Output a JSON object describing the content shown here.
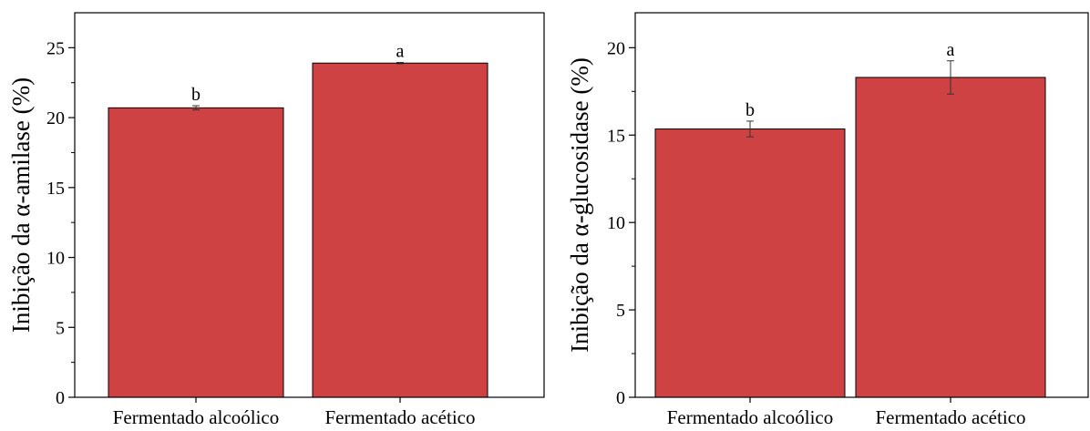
{
  "chart_data": [
    {
      "type": "bar",
      "categories": [
        "Fermentado alcoólico",
        "Fermentado acético"
      ],
      "series": [
        {
          "values": [
            20.7,
            23.9
          ],
          "errors": [
            0.15,
            0.05
          ],
          "letters": [
            "b",
            "a"
          ]
        }
      ],
      "xlabel": "",
      "ylabel": "Inibição da α-amilase  (%)",
      "ylim": [
        0,
        27.5
      ],
      "yticks": [
        0,
        5,
        10,
        15,
        20,
        25
      ],
      "ytick_labels": [
        "0",
        "5",
        "10",
        "15",
        "20",
        "25"
      ],
      "bar_color": "#cf4244",
      "grid": false,
      "legend": false
    },
    {
      "type": "bar",
      "categories": [
        "Fermentado alcoólico",
        "Fermentado acético"
      ],
      "series": [
        {
          "values": [
            15.35,
            18.3
          ],
          "errors": [
            0.45,
            0.95
          ],
          "letters": [
            "b",
            "a"
          ]
        }
      ],
      "xlabel": "",
      "ylabel": "Inibição da α-glucosidase (%)",
      "ylim": [
        0,
        22
      ],
      "yticks": [
        0,
        5,
        10,
        15,
        20
      ],
      "ytick_labels": [
        "0",
        "5",
        "10",
        "15",
        "20"
      ],
      "bar_color": "#cf4244",
      "grid": false,
      "legend": false
    }
  ]
}
